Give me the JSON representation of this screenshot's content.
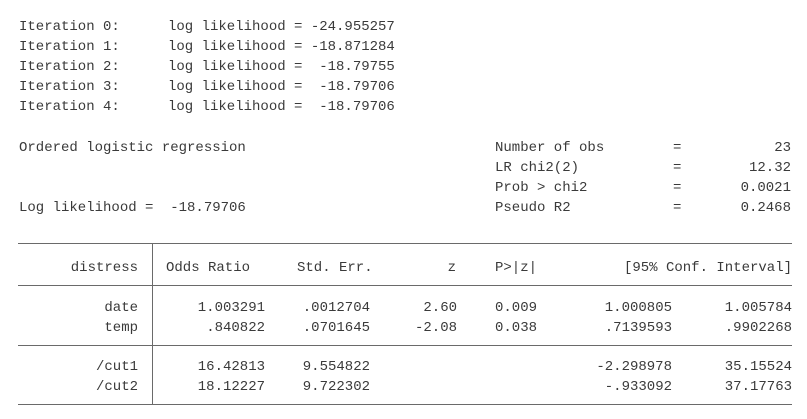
{
  "iterations": [
    {
      "label": "Iteration 0:",
      "text": "log likelihood = -24.955257"
    },
    {
      "label": "Iteration 1:",
      "text": "log likelihood = -18.871284"
    },
    {
      "label": "Iteration 2:",
      "text": "log likelihood =  -18.79755"
    },
    {
      "label": "Iteration 3:",
      "text": "log likelihood =  -18.79706"
    },
    {
      "label": "Iteration 4:",
      "text": "log likelihood =  -18.79706"
    }
  ],
  "model": {
    "title": "Ordered logistic regression",
    "loglik": "Log likelihood =  -18.79706"
  },
  "stats": [
    {
      "label": "Number of obs",
      "eq": "=",
      "value": "23"
    },
    {
      "label": "LR chi2(2)",
      "eq": "=",
      "value": "12.32"
    },
    {
      "label": "Prob > chi2",
      "eq": "=",
      "value": "0.0021"
    },
    {
      "label": "Pseudo R2",
      "eq": "=",
      "value": "0.2468"
    }
  ],
  "table": {
    "header": {
      "var": "distress",
      "coef": "Odds Ratio",
      "se": "Std. Err.",
      "z": "z",
      "p": "P>|z|",
      "ci": "[95% Conf. Interval]"
    },
    "rows": [
      {
        "var": "date",
        "coef": "1.003291",
        "se": ".0012704",
        "z": "2.60",
        "p": "0.009",
        "lo": "1.000805",
        "hi": "1.005784"
      },
      {
        "var": "temp",
        "coef": ".840822",
        "se": ".0701645",
        "z": "-2.08",
        "p": "0.038",
        "lo": ".7139593",
        "hi": ".9902268"
      }
    ],
    "cuts": [
      {
        "var": "/cut1",
        "coef": "16.42813",
        "se": "9.554822",
        "lo": "-2.298978",
        "hi": "35.15524"
      },
      {
        "var": "/cut2",
        "coef": "18.12227",
        "se": "9.722302",
        "lo": "-.933092",
        "hi": "37.17763"
      }
    ]
  }
}
